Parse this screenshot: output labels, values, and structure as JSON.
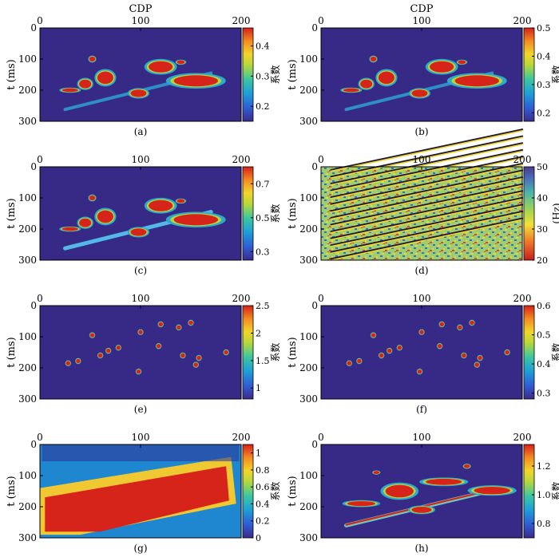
{
  "figure": {
    "colorbar_unit_cn": "系数",
    "colorbar_unit_hz": "(Hz)",
    "axes": {
      "xlabel": "CDP",
      "ylabel": "t (ms)",
      "xticks": [
        "0",
        "100",
        "200"
      ],
      "yticks": [
        "0",
        "100",
        "200",
        "300"
      ]
    },
    "panels": [
      {
        "label": "(a)",
        "cbar_ticks": [
          "0.2",
          "0.3",
          "0.4"
        ],
        "cbar_label": "系数"
      },
      {
        "label": "(b)",
        "cbar_ticks": [
          "0.2",
          "0.3",
          "0.4",
          "0.5"
        ],
        "cbar_label": "系数"
      },
      {
        "label": "(c)",
        "cbar_ticks": [
          "0.3",
          "0.5",
          "0.7"
        ],
        "cbar_label": "系数"
      },
      {
        "label": "(d)",
        "cbar_ticks": [
          "20",
          "30",
          "40",
          "50"
        ],
        "cbar_label": "(Hz)"
      },
      {
        "label": "(e)",
        "cbar_ticks": [
          "1",
          "1.5",
          "2",
          "2.5"
        ],
        "cbar_label": "系数"
      },
      {
        "label": "(f)",
        "cbar_ticks": [
          "0.3",
          "0.4",
          "0.5",
          "0.6"
        ],
        "cbar_label": "系数"
      },
      {
        "label": "(g)",
        "cbar_ticks": [
          "0",
          "0.2",
          "0.4",
          "0.6",
          "0.8",
          "1"
        ],
        "cbar_label": "系数"
      },
      {
        "label": "(h)",
        "cbar_ticks": [
          "0.8",
          "1.0",
          "1.2"
        ],
        "cbar_label": "系数"
      }
    ]
  },
  "chart_data": [
    {
      "type": "heatmap",
      "panel": "(a)",
      "xlabel": "CDP",
      "ylabel": "t (ms)",
      "xlim": [
        0,
        200
      ],
      "ylim": [
        300,
        0
      ],
      "colorbar": {
        "label": "系数",
        "range": [
          0.15,
          0.46
        ],
        "ticks": [
          0.2,
          0.3,
          0.4
        ]
      }
    },
    {
      "type": "heatmap",
      "panel": "(b)",
      "xlabel": "CDP",
      "ylabel": "t (ms)",
      "xlim": [
        0,
        200
      ],
      "ylim": [
        300,
        0
      ],
      "colorbar": {
        "label": "系数",
        "range": [
          0.17,
          0.5
        ],
        "ticks": [
          0.2,
          0.3,
          0.4,
          0.5
        ]
      }
    },
    {
      "type": "heatmap",
      "panel": "(c)",
      "xlabel": "",
      "ylabel": "t (ms)",
      "xlim": [
        0,
        200
      ],
      "ylim": [
        300,
        0
      ],
      "colorbar": {
        "label": "系数",
        "range": [
          0.25,
          0.8
        ],
        "ticks": [
          0.3,
          0.5,
          0.7
        ]
      }
    },
    {
      "type": "heatmap",
      "panel": "(d)",
      "xlabel": "",
      "ylabel": "t (ms)",
      "xlim": [
        0,
        200
      ],
      "ylim": [
        300,
        0
      ],
      "colorbar": {
        "label": "(Hz)",
        "range": [
          20,
          50
        ],
        "ticks": [
          20,
          30,
          40,
          50
        ]
      }
    },
    {
      "type": "heatmap",
      "panel": "(e)",
      "xlabel": "",
      "ylabel": "t (ms)",
      "xlim": [
        0,
        200
      ],
      "ylim": [
        300,
        0
      ],
      "colorbar": {
        "label": "系数",
        "range": [
          0.8,
          2.5
        ],
        "ticks": [
          1,
          1.5,
          2,
          2.5
        ]
      }
    },
    {
      "type": "heatmap",
      "panel": "(f)",
      "xlabel": "",
      "ylabel": "t (ms)",
      "xlim": [
        0,
        200
      ],
      "ylim": [
        300,
        0
      ],
      "colorbar": {
        "label": "系数",
        "range": [
          0.28,
          0.6
        ],
        "ticks": [
          0.3,
          0.4,
          0.5,
          0.6
        ]
      }
    },
    {
      "type": "heatmap",
      "panel": "(g)",
      "xlabel": "",
      "ylabel": "t (ms)",
      "xlim": [
        0,
        200
      ],
      "ylim": [
        300,
        0
      ],
      "colorbar": {
        "label": "系数",
        "range": [
          0,
          1.1
        ],
        "ticks": [
          0,
          0.2,
          0.4,
          0.6,
          0.8,
          1
        ]
      }
    },
    {
      "type": "heatmap",
      "panel": "(h)",
      "xlabel": "",
      "ylabel": "t (ms)",
      "xlim": [
        0,
        200
      ],
      "ylim": [
        300,
        0
      ],
      "colorbar": {
        "label": "系数",
        "range": [
          0.7,
          1.35
        ],
        "ticks": [
          0.8,
          1.0,
          1.2
        ]
      }
    }
  ]
}
